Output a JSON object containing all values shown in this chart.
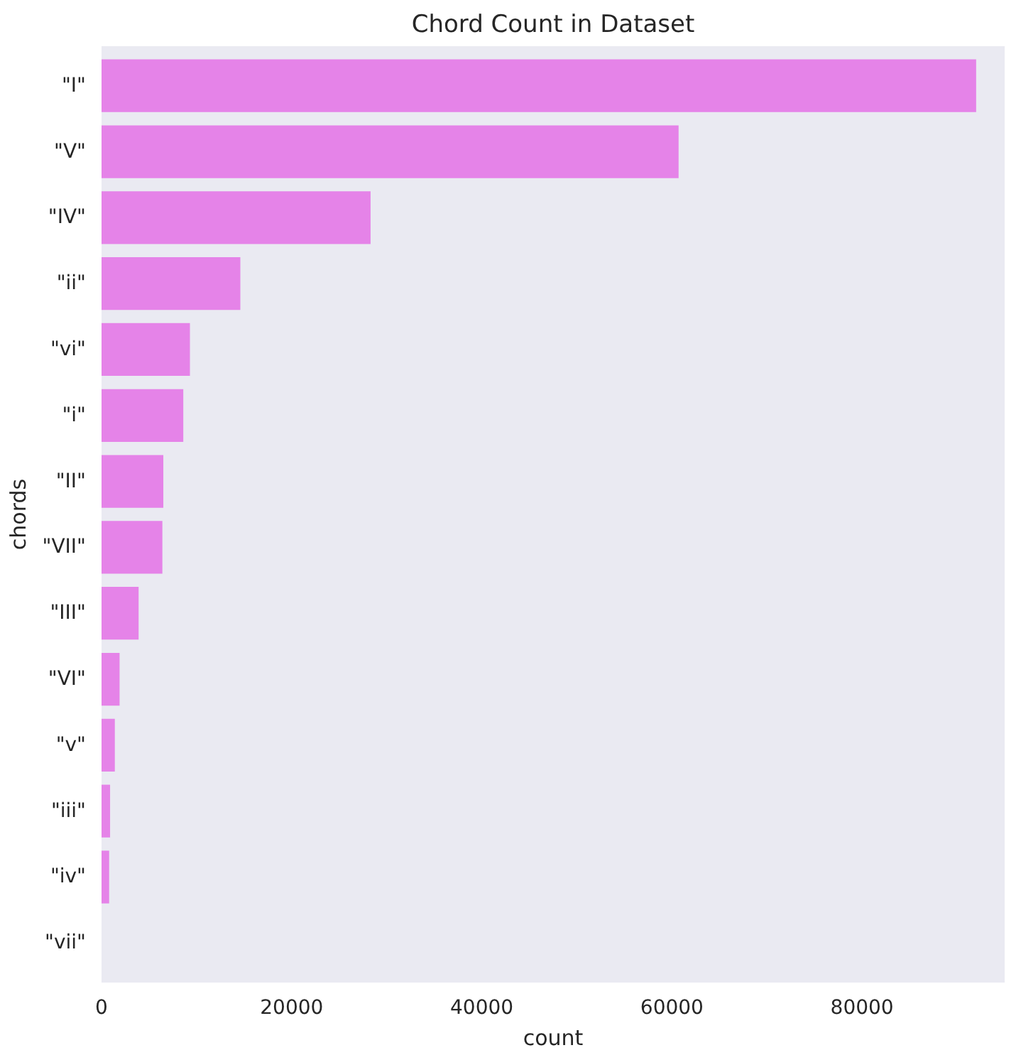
{
  "chart_data": {
    "type": "bar",
    "orientation": "horizontal",
    "title": "Chord Count in Dataset",
    "xlabel": "count",
    "ylabel": "chords",
    "categories": [
      "\"I\"",
      "\"V\"",
      "\"IV\"",
      "\"ii\"",
      "\"vi\"",
      "\"i\"",
      "\"II\"",
      "\"VII\"",
      "\"III\"",
      "\"VI\"",
      "\"v\"",
      "\"iii\"",
      "\"iv\"",
      "\"vii\""
    ],
    "values": [
      92000,
      60700,
      28300,
      14600,
      9300,
      8600,
      6500,
      6400,
      3900,
      1900,
      1400,
      900,
      800,
      0
    ],
    "color": "#e583e8",
    "xlim": [
      0,
      95000
    ],
    "xticks": [
      0,
      20000,
      40000,
      60000,
      80000
    ],
    "grid": false
  }
}
